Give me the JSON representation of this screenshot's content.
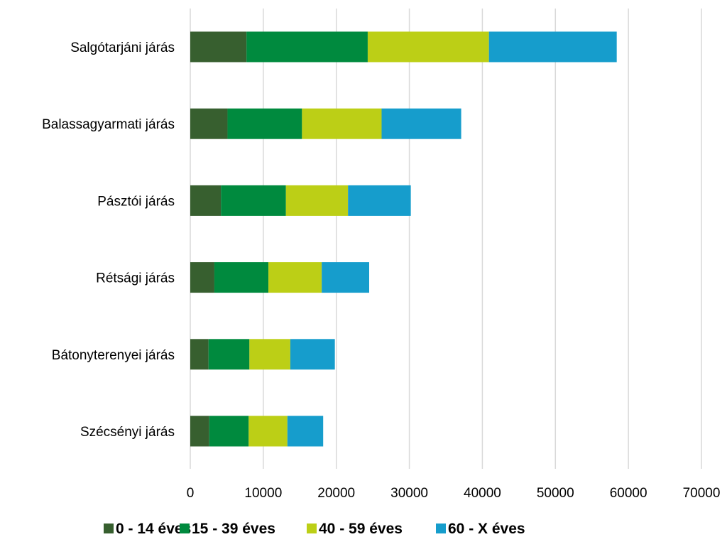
{
  "chart_data": {
    "type": "bar",
    "orientation": "horizontal",
    "stacked": true,
    "categories": [
      "Salgótarjáni járás",
      "Balassagyarmati járás",
      "Pásztói járás",
      "Rétsági járás",
      "Bátonyterenyei járás",
      "Szécsényi járás"
    ],
    "series": [
      {
        "name": "0 - 14 éves",
        "color": "#375f2f",
        "values": [
          7700,
          5100,
          4200,
          3300,
          2500,
          2600
        ]
      },
      {
        "name": "15 - 39 éves",
        "color": "#008a3e",
        "values": [
          16600,
          10200,
          8900,
          7400,
          5600,
          5400
        ]
      },
      {
        "name": "40 - 59 éves",
        "color": "#bccf16",
        "values": [
          16600,
          10900,
          8500,
          7300,
          5600,
          5300
        ]
      },
      {
        "name": "60 - X  éves",
        "color": "#169dcc",
        "values": [
          17500,
          10900,
          8600,
          6500,
          6100,
          4900
        ]
      }
    ],
    "xlim": [
      0,
      70000
    ],
    "xticks": [
      "0",
      "10000",
      "20000",
      "30000",
      "40000",
      "50000",
      "60000",
      "70000"
    ],
    "grid": true,
    "legend_position": "bottom"
  }
}
